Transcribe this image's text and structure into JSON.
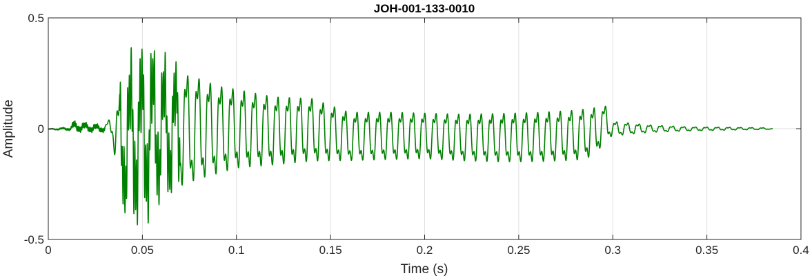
{
  "chart_data": {
    "type": "line",
    "title": "JOH-001-133-0010",
    "xlabel": "Time (s)",
    "ylabel": "Amplitude",
    "xlim": [
      0,
      0.4
    ],
    "ylim": [
      -0.5,
      0.5
    ],
    "x_ticks": [
      0,
      0.05,
      0.1,
      0.15,
      0.2,
      0.25,
      0.3,
      0.35,
      0.4
    ],
    "x_tick_labels": [
      "0",
      "0.05",
      "0.1",
      "0.15",
      "0.2",
      "0.25",
      "0.3",
      "0.35",
      "0.4"
    ],
    "y_ticks": [
      -0.5,
      0,
      0.5
    ],
    "y_tick_labels": [
      "-0.5",
      "0",
      "0.5"
    ],
    "grid": true,
    "series": [
      {
        "color": "#008000",
        "x": [
          0,
          0.012,
          0.013,
          0.03,
          0.034,
          0.038,
          0.042,
          0.046,
          0.05,
          0.054,
          0.06,
          0.07,
          0.08,
          0.09,
          0.1,
          0.12,
          0.14,
          0.16,
          0.18,
          0.2,
          0.22,
          0.24,
          0.26,
          0.28,
          0.29,
          0.297,
          0.3,
          0.31,
          0.32,
          0.34,
          0.36,
          0.38,
          0.385
        ],
        "upper": [
          0.0,
          0.01,
          0.04,
          0.02,
          0.07,
          0.22,
          0.32,
          0.42,
          0.4,
          0.42,
          0.36,
          0.31,
          0.28,
          0.24,
          0.22,
          0.18,
          0.17,
          0.1,
          0.1,
          0.095,
          0.09,
          0.095,
          0.1,
          0.11,
          0.12,
          0.12,
          0.04,
          0.03,
          0.02,
          0.01,
          0.008,
          0.005,
          0.0
        ],
        "lower": [
          -0.005,
          -0.01,
          -0.02,
          -0.02,
          -0.04,
          -0.38,
          -0.44,
          -0.47,
          -0.47,
          -0.42,
          -0.36,
          -0.32,
          -0.28,
          -0.25,
          -0.22,
          -0.2,
          -0.18,
          -0.17,
          -0.165,
          -0.16,
          -0.17,
          -0.175,
          -0.175,
          -0.17,
          -0.15,
          -0.06,
          -0.04,
          -0.03,
          -0.02,
          -0.012,
          -0.008,
          -0.005,
          -0.002
        ]
      }
    ]
  }
}
